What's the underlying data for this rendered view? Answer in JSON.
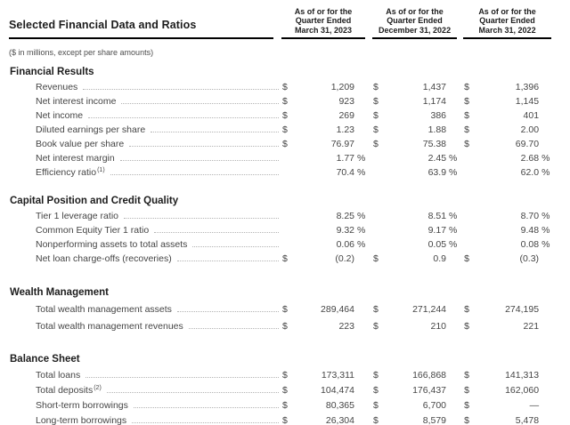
{
  "header": {
    "title": "Selected Financial Data and Ratios",
    "subtitle": "($ in millions, except per share amounts)",
    "columns": [
      {
        "line1": "As of or for the",
        "line2": "Quarter Ended",
        "line3": "March 31, 2023"
      },
      {
        "line1": "As of or for the",
        "line2": "Quarter Ended",
        "line3": "December 31, 2022"
      },
      {
        "line1": "As of or for the",
        "line2": "Quarter Ended",
        "line3": "March 31, 2022"
      }
    ]
  },
  "sections": [
    {
      "name": "Financial Results",
      "rows": [
        {
          "label": "Revenues",
          "sup": "",
          "cells": [
            [
              "$",
              "1,209",
              ""
            ],
            [
              "$",
              "1,437",
              ""
            ],
            [
              "$",
              "1,396",
              ""
            ]
          ]
        },
        {
          "label": "Net interest income",
          "sup": "",
          "cells": [
            [
              "$",
              "923",
              ""
            ],
            [
              "$",
              "1,174",
              ""
            ],
            [
              "$",
              "1,145",
              ""
            ]
          ]
        },
        {
          "label": "Net income",
          "sup": "",
          "cells": [
            [
              "$",
              "269",
              ""
            ],
            [
              "$",
              "386",
              ""
            ],
            [
              "$",
              "401",
              ""
            ]
          ]
        },
        {
          "label": "Diluted earnings per share",
          "sup": "",
          "cells": [
            [
              "$",
              "1.23",
              ""
            ],
            [
              "$",
              "1.88",
              ""
            ],
            [
              "$",
              "2.00",
              ""
            ]
          ]
        },
        {
          "label": "Book value per share",
          "sup": "",
          "cells": [
            [
              "$",
              "76.97",
              ""
            ],
            [
              "$",
              "75.38",
              ""
            ],
            [
              "$",
              "69.70",
              ""
            ]
          ]
        },
        {
          "label": "Net interest margin",
          "sup": "",
          "cells": [
            [
              "",
              "1.77",
              "%"
            ],
            [
              "",
              "2.45",
              "%"
            ],
            [
              "",
              "2.68",
              "%"
            ]
          ]
        },
        {
          "label": "Efficiency ratio",
          "sup": "(1)",
          "cells": [
            [
              "",
              "70.4",
              "%"
            ],
            [
              "",
              "63.9",
              "%"
            ],
            [
              "",
              "62.0",
              "%"
            ]
          ]
        }
      ]
    },
    {
      "name": "Capital Position and Credit Quality",
      "rows": [
        {
          "label": "Tier 1 leverage ratio",
          "sup": "",
          "cells": [
            [
              "",
              "8.25",
              "%"
            ],
            [
              "",
              "8.51",
              "%"
            ],
            [
              "",
              "8.70",
              "%"
            ]
          ]
        },
        {
          "label": "Common Equity Tier 1 ratio",
          "sup": "",
          "cells": [
            [
              "",
              "9.32",
              "%"
            ],
            [
              "",
              "9.17",
              "%"
            ],
            [
              "",
              "9.48",
              "%"
            ]
          ]
        },
        {
          "label": "Nonperforming assets to total assets",
          "sup": "",
          "cells": [
            [
              "",
              "0.06",
              "%"
            ],
            [
              "",
              "0.05",
              "%"
            ],
            [
              "",
              "0.08",
              "%"
            ]
          ]
        },
        {
          "label": "Net loan charge-offs (recoveries)",
          "sup": "",
          "cells": [
            [
              "$",
              "(0.2)",
              ""
            ],
            [
              "$",
              "0.9",
              ""
            ],
            [
              "$",
              "(0.3)",
              ""
            ]
          ]
        }
      ]
    },
    {
      "name": "Wealth Management",
      "rows": [
        {
          "label": "Total wealth management assets",
          "sup": "",
          "cells": [
            [
              "$",
              "289,464",
              ""
            ],
            [
              "$",
              "271,244",
              ""
            ],
            [
              "$",
              "274,195",
              ""
            ]
          ]
        },
        {
          "label": "Total wealth management revenues",
          "sup": "",
          "cells": [
            [
              "$",
              "223",
              ""
            ],
            [
              "$",
              "210",
              ""
            ],
            [
              "$",
              "221",
              ""
            ]
          ]
        }
      ]
    },
    {
      "name": "Balance Sheet",
      "rows": [
        {
          "label": "Total loans",
          "sup": "",
          "cells": [
            [
              "$",
              "173,311",
              ""
            ],
            [
              "$",
              "166,868",
              ""
            ],
            [
              "$",
              "141,313",
              ""
            ]
          ]
        },
        {
          "label": "Total deposits",
          "sup": "(2)",
          "cells": [
            [
              "$",
              "104,474",
              ""
            ],
            [
              "$",
              "176,437",
              ""
            ],
            [
              "$",
              "162,060",
              ""
            ]
          ]
        },
        {
          "label": "Short-term borrowings",
          "sup": "",
          "cells": [
            [
              "$",
              "80,365",
              ""
            ],
            [
              "$",
              "6,700",
              ""
            ],
            [
              "$",
              "—",
              ""
            ]
          ]
        },
        {
          "label": "Long-term borrowings",
          "sup": "",
          "cells": [
            [
              "$",
              "26,304",
              ""
            ],
            [
              "$",
              "8,579",
              ""
            ],
            [
              "$",
              "5,478",
              ""
            ]
          ]
        }
      ]
    }
  ],
  "colors": {
    "background": "#ffffff",
    "heading_text": "#1d1d1d",
    "body_text": "#454545",
    "rule": "#000000",
    "leader_dots": "#b3b3b3"
  }
}
